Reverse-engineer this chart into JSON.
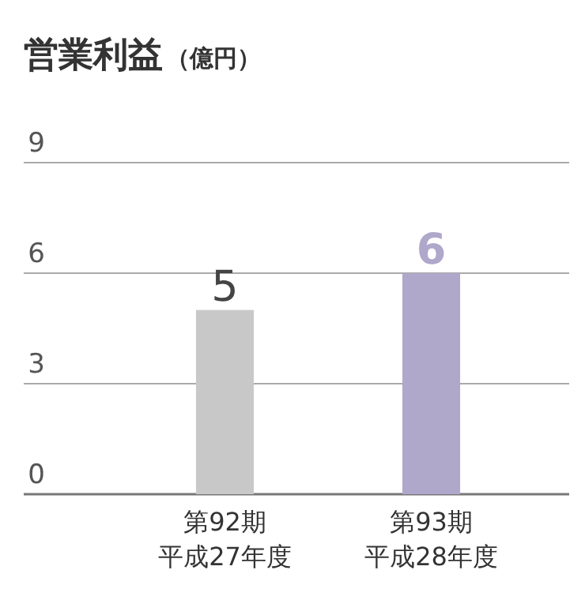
{
  "chart_data": {
    "type": "bar",
    "title": "営業利益",
    "ylabel": "（億円）",
    "categories": [
      "第92期平成27年度",
      "第93期平成28年度"
    ],
    "values": [
      5,
      6
    ],
    "colors": [
      "#c8c8c8",
      "#afa8cb"
    ],
    "ylim": [
      0,
      9
    ],
    "yticks": [
      0,
      3,
      6,
      9
    ],
    "grid": "y",
    "data_labels": true
  }
}
